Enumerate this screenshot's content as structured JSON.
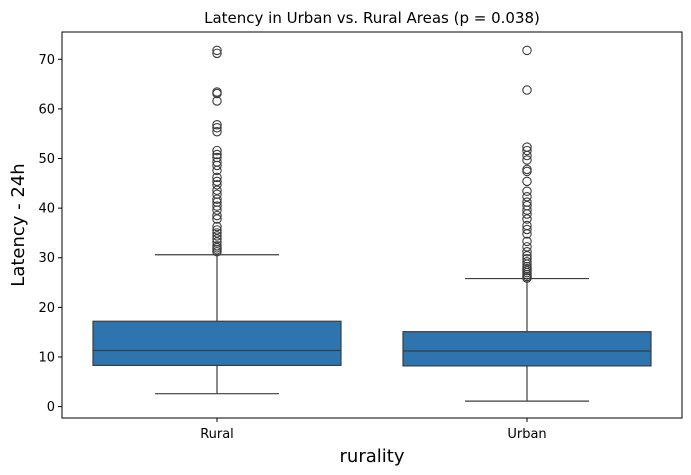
{
  "chart_data": {
    "type": "box",
    "title": "Latency in Urban vs. Rural Areas (p = 0.038)",
    "xlabel": "rurality",
    "ylabel": "Latency - 24h",
    "categories": [
      "Rural",
      "Urban"
    ],
    "ylim": [
      -2.3,
      75.5
    ],
    "yticks": [
      0,
      10,
      20,
      30,
      40,
      50,
      60,
      70
    ],
    "grid": false,
    "box_color": "#2e75b0",
    "line_color": "#3d3d3d",
    "boxes": [
      {
        "category": "Rural",
        "whisker_low": 2.6,
        "q1": 8.3,
        "median": 11.3,
        "q3": 17.2,
        "whisker_high": 30.6,
        "outliers": [
          31.2,
          31.6,
          32.0,
          32.4,
          33.2,
          33.8,
          34.4,
          35.0,
          35.6,
          36.3,
          37.8,
          38.5,
          39.6,
          40.4,
          41.2,
          41.8,
          42.8,
          43.6,
          44.7,
          45.4,
          46.2,
          47.6,
          48.6,
          49.3,
          50.2,
          50.8,
          51.6,
          55.4,
          56.2,
          56.8,
          61.6,
          63.1,
          63.4,
          71.2,
          71.8
        ]
      },
      {
        "category": "Urban",
        "whisker_low": 1.1,
        "q1": 8.2,
        "median": 11.2,
        "q3": 15.1,
        "whisker_high": 25.8,
        "outliers": [
          25.9,
          26.2,
          26.6,
          27.0,
          27.4,
          27.8,
          28.2,
          28.7,
          29.2,
          29.8,
          30.4,
          31.2,
          32.2,
          33.3,
          34.8,
          35.7,
          36.5,
          37.8,
          38.8,
          39.6,
          40.5,
          41.2,
          42.3,
          43.4,
          45.4,
          47.4,
          47.8,
          49.7,
          50.6,
          51.6,
          52.3,
          63.8,
          71.8
        ]
      }
    ]
  }
}
